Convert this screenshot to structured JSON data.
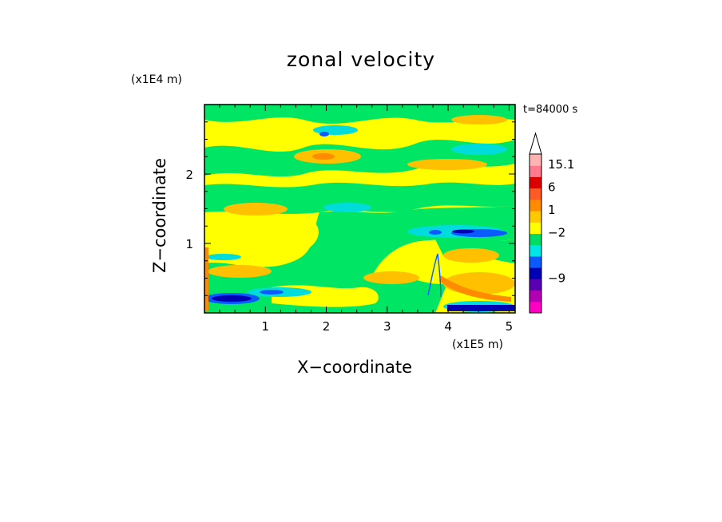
{
  "chart_data": {
    "type": "heatmap",
    "title": "zonal velocity",
    "xlabel": "X−coordinate",
    "ylabel": "Z−coordinate",
    "x_scale_label": "(x1E5 m)",
    "z_scale_label": "(x1E4 m)",
    "time_label": "t=84000 s",
    "x_ticks": [
      "1",
      "2",
      "3",
      "4",
      "5"
    ],
    "x_tick_values": [
      1,
      2,
      3,
      4,
      5
    ],
    "y_ticks": [
      "1",
      "2"
    ],
    "y_tick_values": [
      1,
      2
    ],
    "xlim": [
      0,
      5.1
    ],
    "ylim": [
      0,
      3.0
    ],
    "colorbar_labels": [
      "15.1",
      "6",
      "1",
      "−2",
      "−9"
    ],
    "colorbar_colors": [
      "#ff00c0",
      "#b400b4",
      "#5a00b4",
      "#0000b4",
      "#0a5aff",
      "#00e6e6",
      "#00dc64",
      "#ffff00",
      "#ffc800",
      "#ff8c00",
      "#ff5a28",
      "#dc0000",
      "#ff7a8c",
      "#ffb4b4"
    ],
    "palette": {
      "background": "#ffff00",
      "green": "#00e664",
      "cyan": "#00dcdc",
      "blue": "#0a5aff",
      "navy": "#0000b4",
      "orange": "#ffc000",
      "dark_orange": "#ff8c00"
    }
  }
}
